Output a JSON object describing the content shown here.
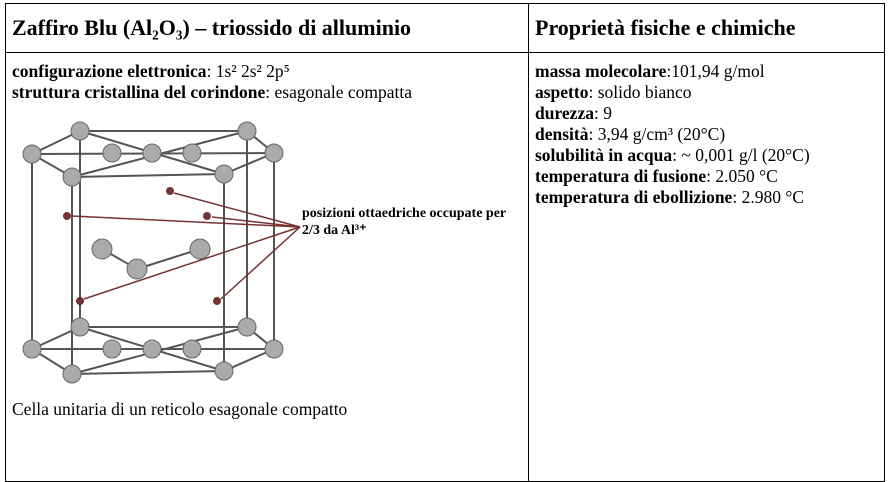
{
  "header": {
    "left": "Zaffiro Blu (Al₂O₃) – triossido di alluminio",
    "right": "Proprietà fisiche e chimiche"
  },
  "left": {
    "items": [
      {
        "label": "configurazione elettronica",
        "text": ": 1s² 2s² 2p⁵"
      },
      {
        "label": "struttura cristallina del corindone",
        "text": ": esagonale compatta"
      }
    ],
    "figure": {
      "annotation": "posizioni ottaedriche occupate per 2/3 da Al³⁺",
      "caption": "Cella unitaria di un reticolo esagonale compatto"
    }
  },
  "right": {
    "items": [
      {
        "label": "massa molecolare",
        "text": ":101,94 g/mol"
      },
      {
        "label": "aspetto",
        "text": ": solido bianco"
      },
      {
        "label": "durezza",
        "text": ": 9"
      },
      {
        "label": "densità",
        "text": ": 3,94 g/cm³ (20°C)"
      },
      {
        "label": "solubilità in acqua",
        "text": ": ~ 0,001 g/l (20°C)"
      },
      {
        "label": "temperatura di fusione",
        "text": ": 2.050 °C"
      },
      {
        "label": "temperatura di ebollizione",
        "text": ": 2.980 °C"
      }
    ]
  }
}
